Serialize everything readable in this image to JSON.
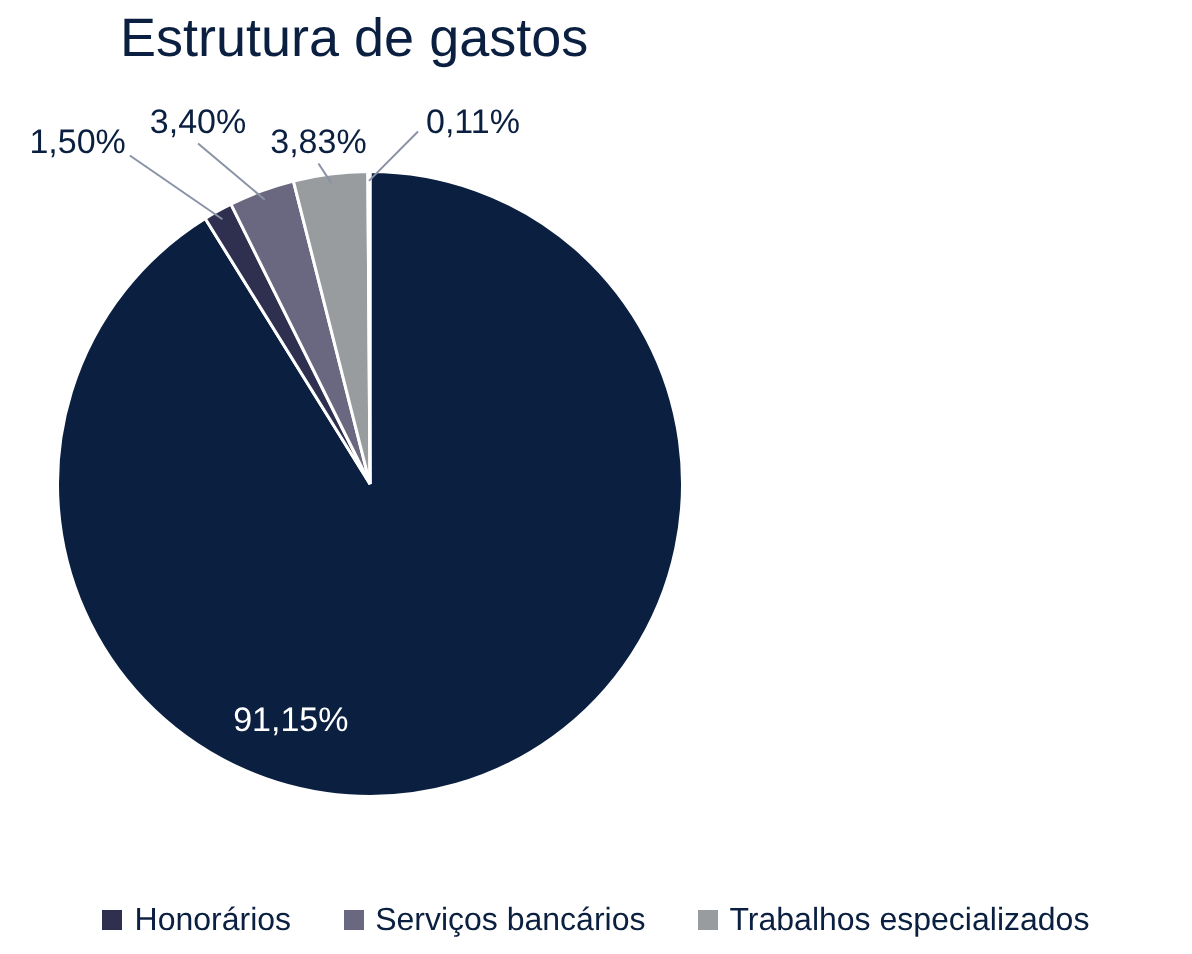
{
  "chart_data": {
    "type": "pie",
    "title": "Estrutura de gastos",
    "categories": [
      null,
      "Honorários",
      "Serviços bancários",
      "Trabalhos especializados",
      null
    ],
    "values": [
      91.15,
      1.5,
      3.4,
      3.83,
      0.11
    ],
    "colors": [
      "#0b2040",
      "#2f3050",
      "#6a6880",
      "#989c9f",
      "#c9ccd0"
    ],
    "value_labels": [
      "91,15%",
      "1,50%",
      "3,40%",
      "3,83%",
      "0,11%"
    ],
    "legend": "bottom"
  }
}
